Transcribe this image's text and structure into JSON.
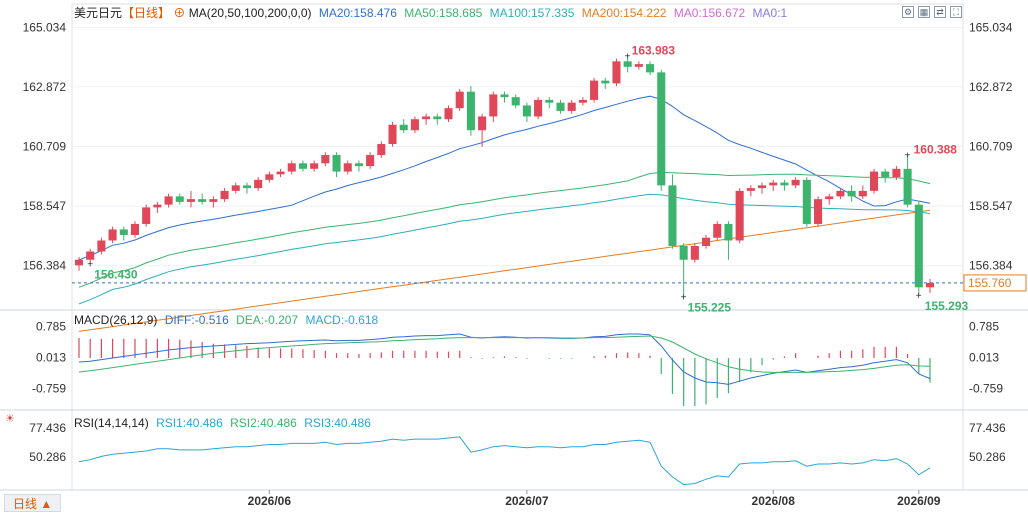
{
  "legend": {
    "symbol": "美元日元",
    "period": "【日线】",
    "ma_label": "MA(20,50,100,200,0,0)",
    "ma20": "MA20:158.476",
    "ma50": "MA50:158.685",
    "ma100": "MA100:157.335",
    "ma200": "MA200:154.222",
    "ma0a": "MA0:156.672",
    "ma0b": "MA0:1"
  },
  "macd_legend": {
    "label": "MACD(26,12,9)",
    "diff": "DIFF:-0.516",
    "dea": "DEA:-0.207",
    "macd": "MACD:-0.618"
  },
  "rsi_legend": {
    "label": "RSI(14,14,14)",
    "rsi1": "RSI1:40.486",
    "rsi2": "RSI2:40.486",
    "rsi3": "RSI3:40.486"
  },
  "toolbar": {
    "period_button": "日线 ▲",
    "icons": [
      "settings-icon",
      "chart-icon",
      "compare-icon",
      "fullscreen-icon"
    ]
  },
  "colors": {
    "up": "#e0485a",
    "down": "#3cb46e",
    "ma20": "#2f6fd1",
    "ma50": "#3cb46e",
    "ma100": "#2bb0bb",
    "ma200": "#e67e22",
    "ma0": "#d36ad1",
    "diff": "#2f6fd1",
    "dea": "#3cb46e",
    "rsi": "#2aa6d6",
    "last_price": "#e67e22"
  },
  "chart_data": [
    {
      "type": "candlestick",
      "title": "美元日元 日线",
      "price_axis_ticks": [
        "165.034",
        "162.872",
        "160.709",
        "158.547",
        "156.384"
      ],
      "ylim": [
        154.85,
        165.3
      ],
      "x_labels": [
        "2026/06",
        "2026/07",
        "2026/08",
        "2026/09"
      ],
      "last_price_label": "155.760",
      "annotations": [
        {
          "text": "163.983",
          "kind": "high"
        },
        {
          "text": "156.430",
          "kind": "low"
        },
        {
          "text": "155.225",
          "kind": "low"
        },
        {
          "text": "160.388",
          "kind": "high"
        },
        {
          "text": "155.293",
          "kind": "low"
        }
      ],
      "candles": [
        [
          156.4,
          156.6,
          156.2,
          156.7
        ],
        [
          156.6,
          156.9,
          156.45,
          157.0
        ],
        [
          156.9,
          157.3,
          156.8,
          157.4
        ],
        [
          157.3,
          157.7,
          157.2,
          157.8
        ],
        [
          157.7,
          157.5,
          157.3,
          157.8
        ],
        [
          157.5,
          157.9,
          157.4,
          158.0
        ],
        [
          157.9,
          158.5,
          157.8,
          158.6
        ],
        [
          158.5,
          158.6,
          158.3,
          158.7
        ],
        [
          158.6,
          158.9,
          158.5,
          159.0
        ],
        [
          158.9,
          158.7,
          158.6,
          159.0
        ],
        [
          158.7,
          158.8,
          158.5,
          159.1
        ],
        [
          158.8,
          158.7,
          158.6,
          159.0
        ],
        [
          158.7,
          158.8,
          158.5,
          158.9
        ],
        [
          158.8,
          159.1,
          158.7,
          159.2
        ],
        [
          159.1,
          159.3,
          159.0,
          159.4
        ],
        [
          159.3,
          159.2,
          159.0,
          159.4
        ],
        [
          159.2,
          159.5,
          159.1,
          159.6
        ],
        [
          159.5,
          159.7,
          159.4,
          159.8
        ],
        [
          159.7,
          159.8,
          159.6,
          159.9
        ],
        [
          159.8,
          160.1,
          159.7,
          160.2
        ],
        [
          160.1,
          159.9,
          159.8,
          160.2
        ],
        [
          159.9,
          160.1,
          159.8,
          160.2
        ],
        [
          160.1,
          160.4,
          160.0,
          160.5
        ],
        [
          160.4,
          159.8,
          159.6,
          160.5
        ],
        [
          159.8,
          160.1,
          159.7,
          160.2
        ],
        [
          160.1,
          160.0,
          159.8,
          160.2
        ],
        [
          160.0,
          160.4,
          159.9,
          160.5
        ],
        [
          160.4,
          160.8,
          160.3,
          160.9
        ],
        [
          160.8,
          161.5,
          160.7,
          161.6
        ],
        [
          161.5,
          161.3,
          161.2,
          161.7
        ],
        [
          161.3,
          161.7,
          161.2,
          161.8
        ],
        [
          161.7,
          161.8,
          161.5,
          161.9
        ],
        [
          161.8,
          161.7,
          161.5,
          161.9
        ],
        [
          161.7,
          162.1,
          161.6,
          162.2
        ],
        [
          162.1,
          162.7,
          162.0,
          162.8
        ],
        [
          162.7,
          161.3,
          161.1,
          162.9
        ],
        [
          161.3,
          161.8,
          160.7,
          161.9
        ],
        [
          161.8,
          162.6,
          161.6,
          162.7
        ],
        [
          162.6,
          162.5,
          162.3,
          162.7
        ],
        [
          162.5,
          162.2,
          162.1,
          162.6
        ],
        [
          162.2,
          161.8,
          161.6,
          162.3
        ],
        [
          161.8,
          162.4,
          161.7,
          162.5
        ],
        [
          162.4,
          162.3,
          162.1,
          162.5
        ],
        [
          162.3,
          162.0,
          161.9,
          162.4
        ],
        [
          162.0,
          162.3,
          161.9,
          162.4
        ],
        [
          162.3,
          162.4,
          162.2,
          162.5
        ],
        [
          162.4,
          163.1,
          162.3,
          163.2
        ],
        [
          163.1,
          163.0,
          162.8,
          163.2
        ],
        [
          163.0,
          163.8,
          162.9,
          163.9
        ],
        [
          163.8,
          163.6,
          163.4,
          163.98
        ],
        [
          163.6,
          163.7,
          163.5,
          163.8
        ],
        [
          163.7,
          163.4,
          163.3,
          163.8
        ],
        [
          163.4,
          159.3,
          159.1,
          163.5
        ],
        [
          159.3,
          157.1,
          157.0,
          159.7
        ],
        [
          157.1,
          156.6,
          155.225,
          157.2
        ],
        [
          156.6,
          157.1,
          156.5,
          157.2
        ],
        [
          157.1,
          157.4,
          157.0,
          157.5
        ],
        [
          157.4,
          157.9,
          157.3,
          158.0
        ],
        [
          157.9,
          157.3,
          156.6,
          158.0
        ],
        [
          157.3,
          159.1,
          157.2,
          159.2
        ],
        [
          159.1,
          159.2,
          158.9,
          159.3
        ],
        [
          159.2,
          159.3,
          159.0,
          159.4
        ],
        [
          159.3,
          159.4,
          159.1,
          159.5
        ],
        [
          159.4,
          159.3,
          159.1,
          159.5
        ],
        [
          159.3,
          159.5,
          159.2,
          159.6
        ],
        [
          159.5,
          157.9,
          157.8,
          159.6
        ],
        [
          157.9,
          158.8,
          157.8,
          158.9
        ],
        [
          158.8,
          158.9,
          158.6,
          159.0
        ],
        [
          158.9,
          159.1,
          158.8,
          159.2
        ],
        [
          159.1,
          158.9,
          158.7,
          159.3
        ],
        [
          158.9,
          159.1,
          158.8,
          159.3
        ],
        [
          159.1,
          159.8,
          159.0,
          159.9
        ],
        [
          159.8,
          159.6,
          159.4,
          159.9
        ],
        [
          159.6,
          159.9,
          159.5,
          160.0
        ],
        [
          159.9,
          158.6,
          158.5,
          160.388
        ],
        [
          158.6,
          155.6,
          155.293,
          158.7
        ],
        [
          155.6,
          155.76,
          155.4,
          155.9
        ]
      ]
    },
    {
      "type": "histogram",
      "title": "MACD(26,12,9)",
      "axis_ticks": [
        "0.785",
        "0.013",
        "-0.759"
      ],
      "ylim": [
        -1.3,
        1.2
      ],
      "diff": [
        -0.1,
        -0.08,
        -0.04,
        0.0,
        0.04,
        0.08,
        0.12,
        0.16,
        0.2,
        0.23,
        0.26,
        0.28,
        0.3,
        0.32,
        0.34,
        0.36,
        0.37,
        0.38,
        0.4,
        0.42,
        0.43,
        0.44,
        0.45,
        0.43,
        0.44,
        0.44,
        0.46,
        0.48,
        0.52,
        0.53,
        0.55,
        0.56,
        0.56,
        0.58,
        0.6,
        0.52,
        0.5,
        0.52,
        0.53,
        0.52,
        0.5,
        0.51,
        0.5,
        0.49,
        0.49,
        0.5,
        0.53,
        0.54,
        0.58,
        0.6,
        0.6,
        0.58,
        0.3,
        -0.05,
        -0.35,
        -0.5,
        -0.6,
        -0.62,
        -0.66,
        -0.58,
        -0.5,
        -0.44,
        -0.38,
        -0.34,
        -0.3,
        -0.36,
        -0.32,
        -0.28,
        -0.24,
        -0.22,
        -0.18,
        -0.12,
        -0.08,
        -0.04,
        -0.12,
        -0.4,
        -0.516
      ],
      "dea": [
        -0.35,
        -0.32,
        -0.28,
        -0.24,
        -0.2,
        -0.16,
        -0.12,
        -0.08,
        -0.04,
        0.0,
        0.04,
        0.08,
        0.12,
        0.15,
        0.18,
        0.21,
        0.24,
        0.26,
        0.28,
        0.3,
        0.32,
        0.34,
        0.36,
        0.37,
        0.38,
        0.39,
        0.4,
        0.41,
        0.43,
        0.44,
        0.46,
        0.47,
        0.48,
        0.5,
        0.51,
        0.51,
        0.51,
        0.51,
        0.51,
        0.51,
        0.51,
        0.51,
        0.51,
        0.5,
        0.5,
        0.5,
        0.51,
        0.51,
        0.52,
        0.53,
        0.54,
        0.55,
        0.5,
        0.4,
        0.25,
        0.1,
        -0.02,
        -0.12,
        -0.22,
        -0.28,
        -0.32,
        -0.35,
        -0.36,
        -0.36,
        -0.36,
        -0.36,
        -0.35,
        -0.34,
        -0.33,
        -0.31,
        -0.29,
        -0.26,
        -0.22,
        -0.18,
        -0.17,
        -0.2,
        -0.207
      ],
      "macd": [
        0.5,
        0.48,
        0.48,
        0.48,
        0.48,
        0.48,
        0.48,
        0.48,
        0.48,
        0.46,
        0.44,
        0.4,
        0.36,
        0.34,
        0.32,
        0.3,
        0.26,
        0.24,
        0.24,
        0.24,
        0.22,
        0.2,
        0.18,
        0.12,
        0.12,
        0.1,
        0.12,
        0.14,
        0.18,
        0.18,
        0.18,
        0.18,
        0.16,
        0.16,
        0.18,
        0.02,
        -0.02,
        0.02,
        0.04,
        0.02,
        -0.02,
        0.0,
        -0.02,
        -0.02,
        -0.02,
        0.0,
        0.04,
        0.06,
        0.12,
        0.14,
        0.12,
        0.06,
        -0.4,
        -0.9,
        -1.2,
        -1.2,
        -1.16,
        -1.0,
        -0.88,
        -0.6,
        -0.36,
        -0.18,
        -0.04,
        0.04,
        0.12,
        0.0,
        0.06,
        0.12,
        0.18,
        0.18,
        0.22,
        0.28,
        0.28,
        0.28,
        0.1,
        -0.4,
        -0.618
      ]
    },
    {
      "type": "line",
      "title": "RSI(14,14,14)",
      "axis_ticks": [
        "77.436",
        "50.286"
      ],
      "ylim": [
        20,
        92
      ],
      "rsi": [
        46,
        48,
        51,
        53,
        54,
        55,
        56,
        58,
        58,
        57,
        57,
        57,
        58,
        59,
        60,
        60,
        61,
        62,
        62,
        63,
        63,
        63,
        64,
        62,
        63,
        63,
        64,
        65,
        67,
        66,
        67,
        67,
        67,
        68,
        69,
        55,
        57,
        60,
        61,
        60,
        59,
        60,
        60,
        59,
        60,
        60,
        62,
        62,
        64,
        65,
        66,
        64,
        42,
        32,
        25,
        26,
        30,
        33,
        32,
        44,
        45,
        45,
        46,
        46,
        47,
        42,
        44,
        44,
        45,
        44,
        45,
        48,
        47,
        49,
        44,
        34,
        40.486
      ]
    }
  ]
}
